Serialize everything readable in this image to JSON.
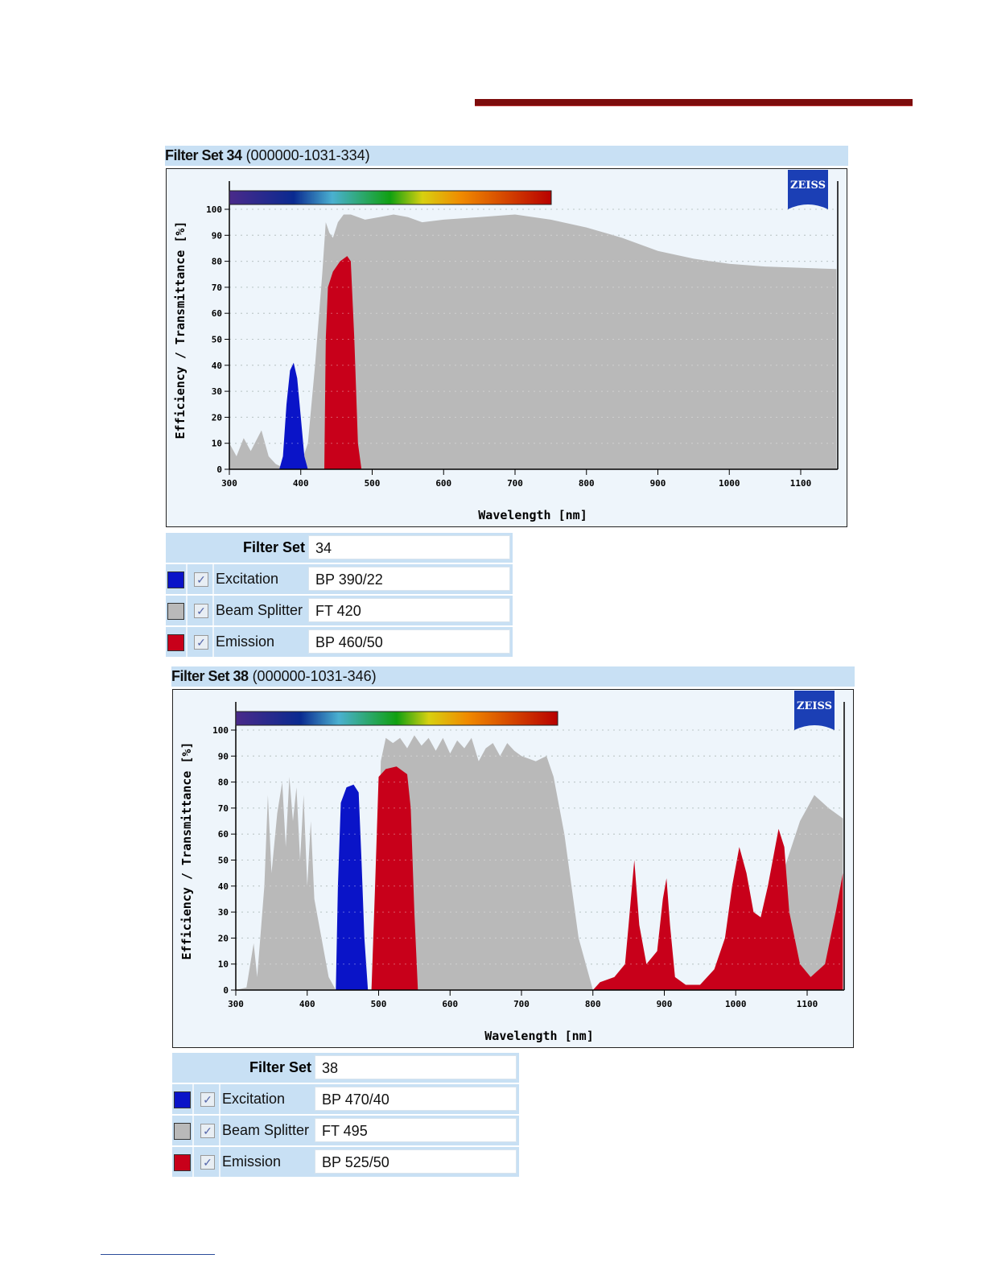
{
  "colors": {
    "excitation": "#0a14c8",
    "beam_splitter": "#b9b9b9",
    "emission": "#c8001a",
    "header_bg": "#c8e0f4",
    "panel_bg": "#eef5fb"
  },
  "logo_text": "ZEISS",
  "chart_data": [
    {
      "type": "area",
      "title_bold": "Filter Set 34",
      "title_code": "(000000-1031-334)",
      "xlabel": "Wavelength [nm]",
      "ylabel": "Efficiency / Transmittance [%]",
      "xlim": [
        300,
        1150
      ],
      "ylim": [
        0,
        100
      ],
      "xticks": [
        "300",
        "400",
        "500",
        "600",
        "700",
        "800",
        "900",
        "1000",
        "1100"
      ],
      "yticks": [
        "0",
        "10",
        "20",
        "30",
        "40",
        "50",
        "60",
        "70",
        "80",
        "90",
        "100"
      ],
      "grid": true,
      "series": [
        {
          "name": "Beam Splitter",
          "color": "#b9b9b9",
          "points": [
            [
              300,
              10
            ],
            [
              310,
              5
            ],
            [
              320,
              12
            ],
            [
              330,
              7
            ],
            [
              345,
              15
            ],
            [
              355,
              5
            ],
            [
              365,
              2
            ],
            [
              380,
              0
            ],
            [
              400,
              2
            ],
            [
              410,
              10
            ],
            [
              420,
              40
            ],
            [
              430,
              75
            ],
            [
              435,
              95
            ],
            [
              440,
              91
            ],
            [
              445,
              89
            ],
            [
              452,
              95
            ],
            [
              460,
              98
            ],
            [
              470,
              98
            ],
            [
              490,
              96
            ],
            [
              510,
              97
            ],
            [
              530,
              98
            ],
            [
              550,
              97
            ],
            [
              570,
              95
            ],
            [
              600,
              96
            ],
            [
              650,
              97
            ],
            [
              700,
              98
            ],
            [
              750,
              96
            ],
            [
              800,
              93
            ],
            [
              850,
              89
            ],
            [
              900,
              84
            ],
            [
              950,
              81
            ],
            [
              1000,
              79
            ],
            [
              1050,
              78
            ],
            [
              1150,
              77
            ]
          ]
        },
        {
          "name": "Excitation",
          "color": "#0a14c8",
          "points": [
            [
              370,
              0
            ],
            [
              375,
              5
            ],
            [
              380,
              25
            ],
            [
              385,
              38
            ],
            [
              390,
              41
            ],
            [
              395,
              35
            ],
            [
              400,
              20
            ],
            [
              405,
              5
            ],
            [
              410,
              0
            ]
          ]
        },
        {
          "name": "Emission",
          "color": "#c8001a",
          "points": [
            [
              433,
              0
            ],
            [
              435,
              50
            ],
            [
              438,
              70
            ],
            [
              445,
              76
            ],
            [
              455,
              80
            ],
            [
              465,
              82
            ],
            [
              470,
              80
            ],
            [
              475,
              50
            ],
            [
              480,
              10
            ],
            [
              485,
              0
            ]
          ]
        }
      ],
      "table": {
        "filter_set_label": "Filter Set",
        "filter_set": "34",
        "rows": [
          {
            "label": "Excitation",
            "value": "BP 390/22",
            "checked": true
          },
          {
            "label": "Beam Splitter",
            "value": "FT 420",
            "checked": true
          },
          {
            "label": "Emission",
            "value": "BP 460/50",
            "checked": true
          }
        ]
      }
    },
    {
      "type": "area",
      "title_bold": "Filter Set 38",
      "title_code": "(000000-1031-346)",
      "xlabel": "Wavelength [nm]",
      "ylabel": "Efficiency / Transmittance [%]",
      "xlim": [
        300,
        1150
      ],
      "ylim": [
        0,
        100
      ],
      "xticks": [
        "300",
        "400",
        "500",
        "600",
        "700",
        "800",
        "900",
        "1000",
        "1100"
      ],
      "yticks": [
        "0",
        "10",
        "20",
        "30",
        "40",
        "50",
        "60",
        "70",
        "80",
        "90",
        "100"
      ],
      "grid": true,
      "series": [
        {
          "name": "Beam Splitter",
          "color": "#b9b9b9",
          "points": [
            [
              300,
              0
            ],
            [
              315,
              1
            ],
            [
              325,
              18
            ],
            [
              330,
              5
            ],
            [
              340,
              40
            ],
            [
              345,
              75
            ],
            [
              350,
              45
            ],
            [
              358,
              68
            ],
            [
              365,
              80
            ],
            [
              370,
              55
            ],
            [
              375,
              82
            ],
            [
              380,
              65
            ],
            [
              385,
              78
            ],
            [
              390,
              50
            ],
            [
              395,
              75
            ],
            [
              400,
              40
            ],
            [
              405,
              65
            ],
            [
              410,
              35
            ],
            [
              420,
              20
            ],
            [
              430,
              5
            ],
            [
              440,
              0
            ],
            [
              490,
              0
            ],
            [
              498,
              30
            ],
            [
              503,
              88
            ],
            [
              510,
              97
            ],
            [
              520,
              95
            ],
            [
              530,
              97
            ],
            [
              540,
              93
            ],
            [
              550,
              98
            ],
            [
              560,
              94
            ],
            [
              570,
              97
            ],
            [
              580,
              92
            ],
            [
              590,
              97
            ],
            [
              600,
              91
            ],
            [
              610,
              96
            ],
            [
              620,
              93
            ],
            [
              630,
              97
            ],
            [
              640,
              88
            ],
            [
              650,
              93
            ],
            [
              660,
              95
            ],
            [
              670,
              90
            ],
            [
              680,
              95
            ],
            [
              690,
              92
            ],
            [
              700,
              90
            ],
            [
              720,
              88
            ],
            [
              735,
              90
            ],
            [
              745,
              82
            ],
            [
              760,
              60
            ],
            [
              780,
              20
            ],
            [
              800,
              0
            ],
            [
              1000,
              0
            ],
            [
              1030,
              20
            ],
            [
              1060,
              40
            ],
            [
              1090,
              65
            ],
            [
              1110,
              75
            ],
            [
              1130,
              70
            ],
            [
              1150,
              66
            ]
          ]
        },
        {
          "name": "Excitation",
          "color": "#0a14c8",
          "points": [
            [
              440,
              0
            ],
            [
              443,
              40
            ],
            [
              447,
              72
            ],
            [
              455,
              78
            ],
            [
              465,
              79
            ],
            [
              472,
              76
            ],
            [
              476,
              50
            ],
            [
              480,
              20
            ],
            [
              485,
              0
            ]
          ]
        },
        {
          "name": "Emission",
          "color": "#c8001a",
          "points": [
            [
              490,
              0
            ],
            [
              495,
              40
            ],
            [
              500,
              82
            ],
            [
              510,
              85
            ],
            [
              525,
              86
            ],
            [
              540,
              83
            ],
            [
              545,
              70
            ],
            [
              550,
              30
            ],
            [
              555,
              0
            ],
            [
              800,
              0
            ],
            [
              810,
              3
            ],
            [
              830,
              5
            ],
            [
              845,
              10
            ],
            [
              850,
              25
            ],
            [
              858,
              50
            ],
            [
              865,
              25
            ],
            [
              875,
              10
            ],
            [
              890,
              15
            ],
            [
              898,
              35
            ],
            [
              903,
              43
            ],
            [
              908,
              25
            ],
            [
              915,
              5
            ],
            [
              930,
              2
            ],
            [
              950,
              2
            ],
            [
              970,
              8
            ],
            [
              985,
              20
            ],
            [
              995,
              40
            ],
            [
              1005,
              55
            ],
            [
              1015,
              45
            ],
            [
              1025,
              30
            ],
            [
              1035,
              28
            ],
            [
              1045,
              40
            ],
            [
              1060,
              62
            ],
            [
              1068,
              55
            ],
            [
              1075,
              30
            ],
            [
              1090,
              10
            ],
            [
              1105,
              5
            ],
            [
              1125,
              10
            ],
            [
              1140,
              30
            ],
            [
              1150,
              45
            ]
          ]
        }
      ],
      "table": {
        "filter_set_label": "Filter Set",
        "filter_set": "38",
        "rows": [
          {
            "label": "Excitation",
            "value": "BP 470/40",
            "checked": true
          },
          {
            "label": "Beam Splitter",
            "value": "FT 495",
            "checked": true
          },
          {
            "label": "Emission",
            "value": "BP 525/50",
            "checked": true
          }
        ]
      }
    }
  ]
}
